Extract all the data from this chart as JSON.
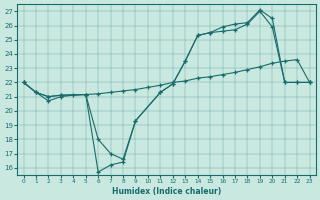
{
  "xlabel": "Humidex (Indice chaleur)",
  "xlim_min": -0.5,
  "xlim_max": 23.5,
  "ylim_min": 15.5,
  "ylim_max": 27.5,
  "xticks": [
    0,
    1,
    2,
    3,
    4,
    5,
    6,
    7,
    8,
    9,
    10,
    11,
    12,
    13,
    14,
    15,
    16,
    17,
    18,
    19,
    20,
    21,
    22,
    23
  ],
  "yticks": [
    16,
    17,
    18,
    19,
    20,
    21,
    22,
    23,
    24,
    25,
    26,
    27
  ],
  "bg_color": "#c8e8e0",
  "line_color": "#1a6b6b",
  "line1_x": [
    0,
    1,
    2,
    3,
    4,
    5,
    6,
    7,
    8,
    9,
    10,
    11,
    12,
    13,
    14,
    15,
    16,
    17,
    18,
    19,
    20,
    21,
    22,
    23
  ],
  "line1_y": [
    22.0,
    21.3,
    20.7,
    21.0,
    21.1,
    21.15,
    21.2,
    21.3,
    21.4,
    21.5,
    21.65,
    21.8,
    22.0,
    22.1,
    22.3,
    22.4,
    22.55,
    22.7,
    22.9,
    23.1,
    23.35,
    23.5,
    23.6,
    22.0
  ],
  "line2_x": [
    0,
    1,
    2,
    3,
    5,
    6,
    7,
    8,
    9,
    11,
    12,
    13,
    14,
    15,
    16,
    17,
    18,
    19,
    20,
    21,
    22,
    23
  ],
  "line2_y": [
    22.0,
    21.3,
    21.0,
    21.1,
    21.15,
    15.7,
    16.2,
    16.4,
    19.3,
    21.3,
    21.9,
    23.5,
    25.3,
    25.5,
    25.6,
    25.7,
    26.1,
    27.0,
    25.9,
    22.0,
    22.0,
    22.0
  ],
  "line3_x": [
    0,
    1,
    2,
    3,
    5,
    6,
    7,
    8,
    9,
    11,
    12,
    13,
    14,
    15,
    16,
    17,
    18,
    19,
    20,
    21,
    22,
    23
  ],
  "line3_y": [
    22.0,
    21.3,
    21.0,
    21.1,
    21.15,
    18.0,
    17.0,
    16.6,
    19.3,
    21.3,
    21.9,
    23.5,
    25.3,
    25.5,
    25.9,
    26.1,
    26.2,
    27.1,
    26.5,
    22.0,
    22.0,
    22.0
  ]
}
